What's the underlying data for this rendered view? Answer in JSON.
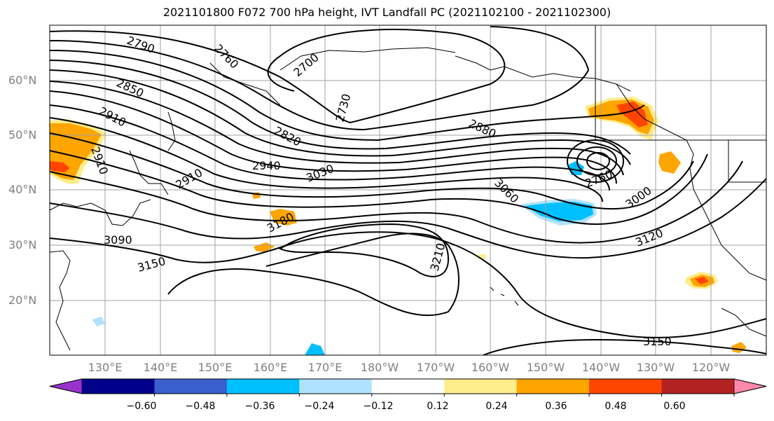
{
  "title": "2021101800 F072 700 hPa height, IVT Landfall PC (2021102100 - 2021102300)",
  "lat_labels": [
    "60°N",
    "50°N",
    "40°N",
    "30°N",
    "20°N"
  ],
  "lon_labels": [
    "130°E",
    "140°E",
    "150°E",
    "160°E",
    "170°E",
    "180°W",
    "170°W",
    "160°W",
    "150°W",
    "140°W",
    "130°W",
    "120°W"
  ],
  "contour_labels": [
    "2790",
    "2760",
    "2700",
    "2730",
    "2850",
    "2910",
    "2820",
    "2880",
    "2910",
    "2940",
    "3030",
    "2910",
    "3060",
    "2760",
    "3000",
    "3180",
    "3090",
    "3120",
    "3210",
    "3150",
    "3150"
  ],
  "colorbar": {
    "ticks": [
      "−0.60",
      "−0.48",
      "−0.36",
      "−0.24",
      "−0.12",
      "0.12",
      "0.24",
      "0.36",
      "0.48",
      "0.60"
    ],
    "colors": [
      "#9932cc",
      "#00008b",
      "#3a5fcd",
      "#00bfff",
      "#b0e2ff",
      "#ffffff",
      "#ffec8b",
      "#ffa500",
      "#ff4500",
      "#b22222",
      "#ff88aa"
    ]
  },
  "colors": {
    "positive_low": "#ffec8b",
    "positive_mid": "#ffa500",
    "positive_high": "#ff4500",
    "negative_low": "#b0e2ff",
    "negative_mid": "#00bfff",
    "coast": "#000000",
    "grid": "#a0a0a0"
  }
}
